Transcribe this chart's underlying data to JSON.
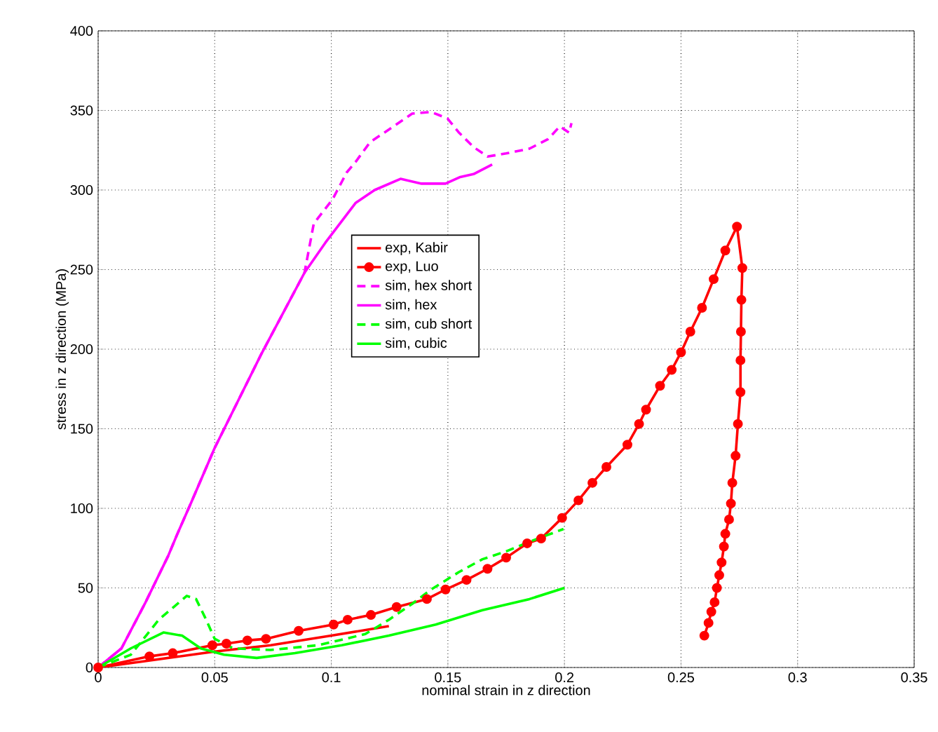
{
  "chart_data": {
    "type": "line",
    "xlabel": "nominal strain in z direction",
    "ylabel": "stress in z direction (MPa)",
    "xlim": [
      0,
      0.35
    ],
    "xticks": [
      0,
      0.05,
      0.1,
      0.15,
      0.2,
      0.25,
      0.3,
      0.35
    ],
    "ylim": [
      0,
      400
    ],
    "yticks": [
      0,
      50,
      100,
      150,
      200,
      250,
      300,
      350,
      400
    ],
    "grid": true,
    "legend": "center",
    "series": [
      {
        "name": "exp, Kabir",
        "color": "#ff0000",
        "line_style": "solid",
        "marker": "none",
        "x": [
          0,
          0.02,
          0.05,
          0.074,
          0.1,
          0.1247
        ],
        "values": [
          0,
          4,
          10,
          14,
          20,
          26
        ]
      },
      {
        "name": "exp, Luo",
        "color": "#ff0000",
        "line_style": "solid",
        "marker": "circle",
        "x": [
          0,
          0.022,
          0.032,
          0.049,
          0.055,
          0.064,
          0.072,
          0.086,
          0.101,
          0.107,
          0.117,
          0.128,
          0.141,
          0.149,
          0.158,
          0.167,
          0.175,
          0.184,
          0.19,
          0.199,
          0.206,
          0.212,
          0.218,
          0.227,
          0.232,
          0.235,
          0.241,
          0.246,
          0.25,
          0.254,
          0.259,
          0.264,
          0.269,
          0.274,
          0.2763,
          0.2759,
          0.2757,
          0.2755,
          0.2755,
          0.2744,
          0.2734,
          0.272,
          0.2714,
          0.2706,
          0.269,
          0.2684,
          0.2674,
          0.2664,
          0.2654,
          0.2644,
          0.263,
          0.2618,
          0.26
        ],
        "values": [
          0,
          7,
          9,
          14,
          15,
          17,
          18,
          23,
          27,
          30,
          33,
          38,
          43,
          49,
          55,
          62,
          69,
          78,
          81,
          94,
          105,
          116,
          126,
          140,
          153,
          162,
          177,
          187,
          198,
          211,
          226,
          244,
          262,
          277,
          251,
          231,
          211,
          193,
          173,
          153,
          133,
          116,
          103,
          93,
          84,
          76,
          66,
          58,
          50,
          41,
          35,
          28,
          20
        ]
      },
      {
        "name": "sim, hex short",
        "color": "#ff00ff",
        "line_style": "dashed",
        "marker": "none",
        "x": [
          0,
          0.01,
          0.02,
          0.03,
          0.034,
          0.04,
          0.05,
          0.07,
          0.0885,
          0.0925,
          0.1005,
          0.1066,
          0.1106,
          0.1166,
          0.1267,
          0.1347,
          0.1428,
          0.1498,
          0.1548,
          0.161,
          0.167,
          0.175,
          0.185,
          0.193,
          0.198,
          0.202,
          0.203
        ],
        "values": [
          0,
          12,
          40,
          70,
          84,
          104,
          138,
          197,
          248,
          279,
          294,
          311,
          318,
          330,
          340,
          348,
          349,
          345,
          336,
          327,
          321,
          323,
          326,
          332,
          340,
          336,
          342
        ]
      },
      {
        "name": "sim, hex",
        "color": "#ff00ff",
        "line_style": "solid",
        "marker": "none",
        "x": [
          0,
          0.01,
          0.02,
          0.03,
          0.034,
          0.04,
          0.05,
          0.07,
          0.0885,
          0.0975,
          0.1105,
          0.1186,
          0.1297,
          0.1387,
          0.149,
          0.155,
          0.161,
          0.169
        ],
        "values": [
          0,
          12,
          40,
          70,
          84,
          104,
          138,
          197,
          248,
          267,
          292,
          300,
          307,
          304,
          304,
          308,
          310,
          316
        ]
      },
      {
        "name": "sim, cub short",
        "color": "#00ff00",
        "line_style": "dashed",
        "marker": "none",
        "x": [
          0,
          0.014,
          0.026,
          0.038,
          0.042,
          0.046,
          0.05,
          0.058,
          0.074,
          0.0945,
          0.1146,
          0.1247,
          0.1347,
          0.1428,
          0.1548,
          0.1648,
          0.175,
          0.185,
          0.1996
        ],
        "values": [
          0,
          8,
          30,
          45,
          43,
          31,
          18,
          12,
          11,
          14,
          21,
          30,
          40,
          49,
          60,
          68,
          73,
          79,
          87
        ]
      },
      {
        "name": "sim, cubic",
        "color": "#00ff00",
        "line_style": "solid",
        "marker": "none",
        "x": [
          0,
          0.014,
          0.028,
          0.036,
          0.044,
          0.054,
          0.068,
          0.0844,
          0.1045,
          0.1247,
          0.1448,
          0.1648,
          0.185,
          0.2
        ],
        "values": [
          0,
          12,
          22,
          20,
          12,
          8,
          6,
          9,
          14,
          20,
          27,
          36,
          43,
          50
        ]
      }
    ]
  }
}
